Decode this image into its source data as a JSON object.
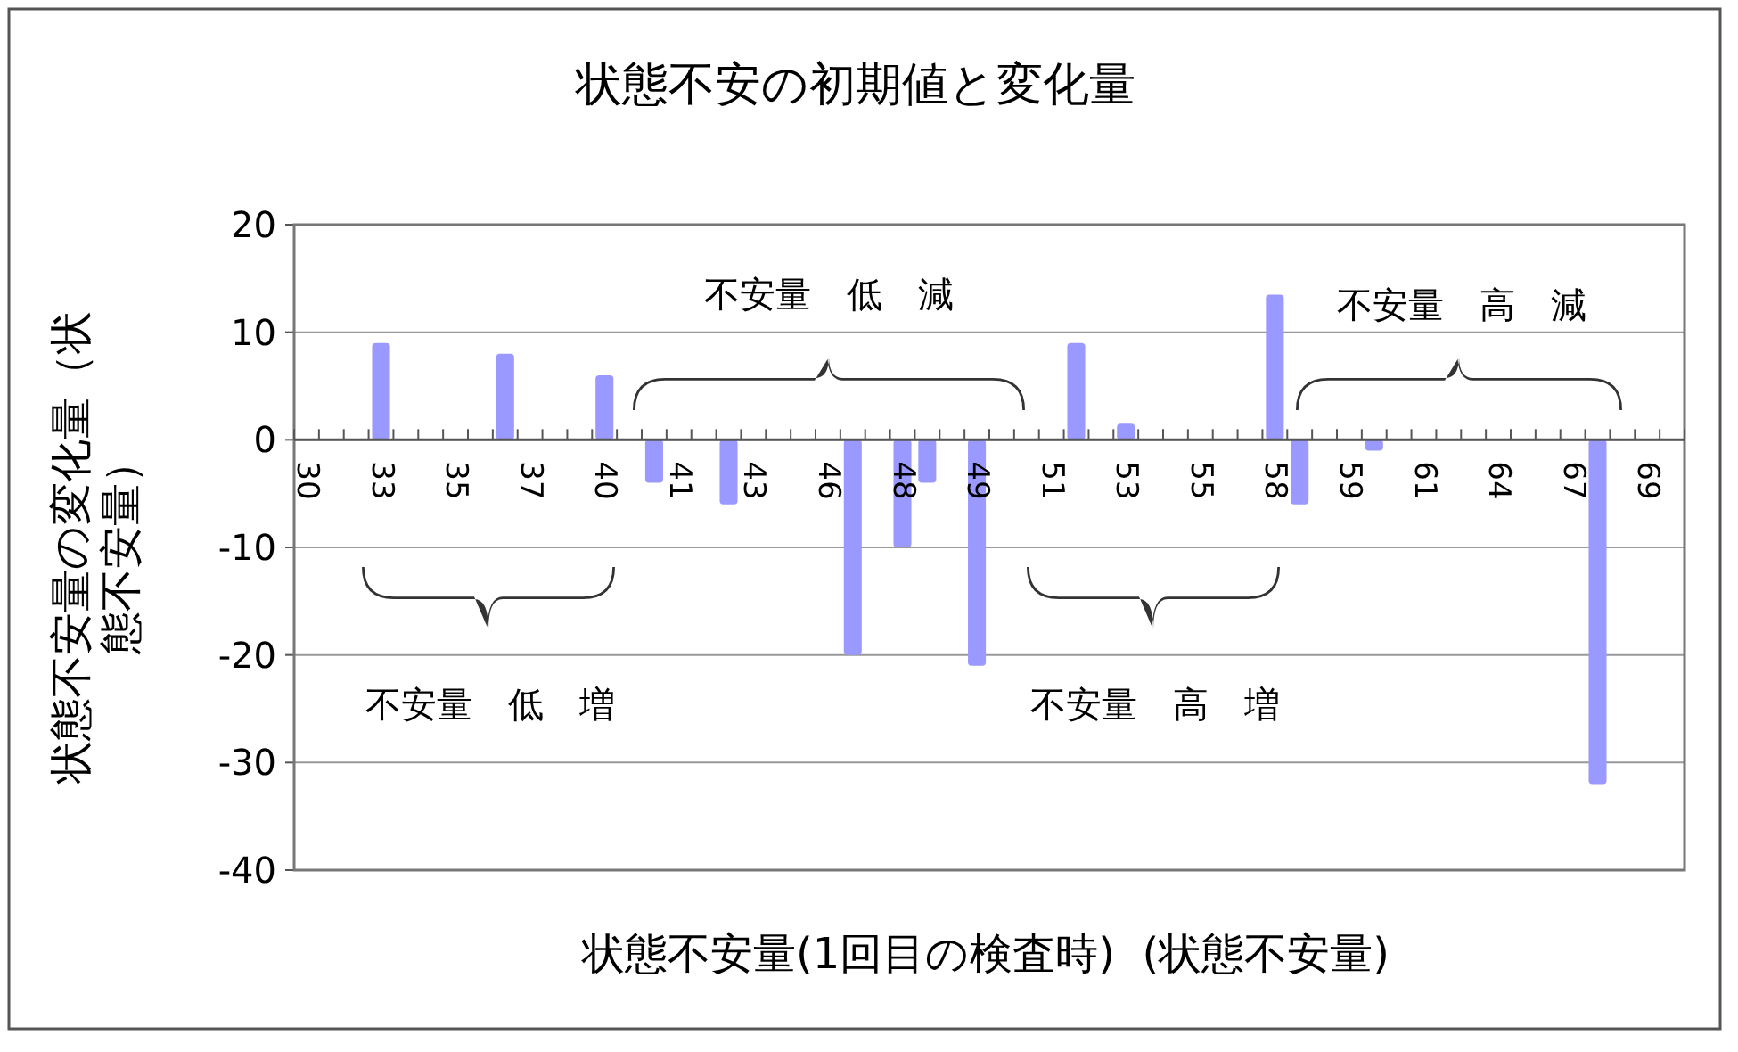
{
  "chart_data": {
    "type": "bar",
    "title": "状態不安の初期値と変化量",
    "xlabel": "状態不安量(1回目の検査時)  (状態不安量)",
    "ylabel": "状態不安量の変化量（状態不安量）",
    "categories": [
      "30",
      null,
      null,
      "33",
      null,
      null,
      "35",
      null,
      null,
      "37",
      null,
      null,
      "40",
      null,
      null,
      "41",
      null,
      null,
      "43",
      null,
      null,
      "46",
      null,
      null,
      "48",
      null,
      null,
      "49",
      null,
      null,
      "51",
      null,
      null,
      "53",
      null,
      null,
      "55",
      null,
      null,
      "58",
      null,
      null,
      "59",
      null,
      null,
      "61",
      null,
      null,
      "64",
      null,
      null,
      "67",
      null,
      null,
      "69",
      null
    ],
    "values": [
      null,
      null,
      null,
      9,
      null,
      null,
      null,
      null,
      8,
      null,
      null,
      null,
      6,
      null,
      -4,
      null,
      null,
      -6,
      null,
      null,
      null,
      null,
      -20,
      null,
      -10,
      -4,
      null,
      -21,
      null,
      null,
      null,
      9,
      null,
      1.5,
      null,
      null,
      null,
      null,
      null,
      13.5,
      -6,
      null,
      null,
      -1,
      null,
      null,
      null,
      null,
      null,
      null,
      null,
      null,
      -32,
      null,
      null,
      null
    ],
    "color": "#9999ff",
    "ylim": [
      -40,
      20
    ],
    "yticks": [
      -40,
      -30,
      -20,
      -10,
      0,
      10,
      20
    ],
    "grid": "y",
    "annotations": [
      "不安量　低　減",
      "不安量　高　減",
      "不安量　低　増",
      "不安量　高　増"
    ]
  }
}
